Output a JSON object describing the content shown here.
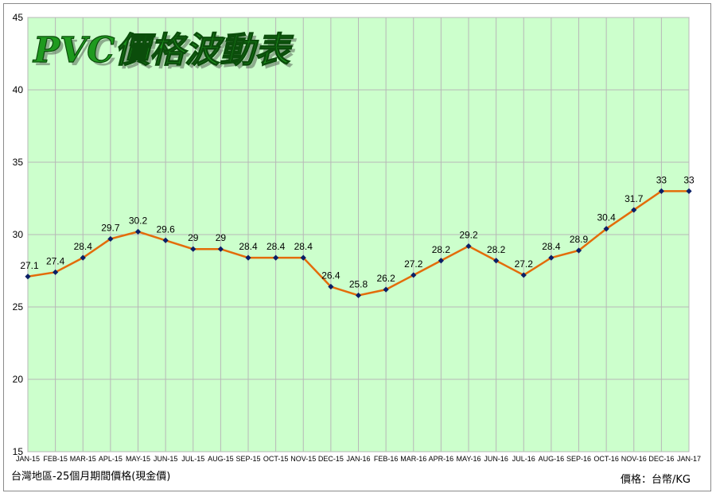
{
  "chart_data": {
    "type": "line",
    "title": "PVC價格波動表",
    "categories": [
      "JAN-15",
      "FEB-15",
      "MAR-15",
      "APL-15",
      "MAY-15",
      "JUN-15",
      "JUL-15",
      "AUG-15",
      "SEP-15",
      "OCT-15",
      "NOV-15",
      "DEC-15",
      "JAN-16",
      "FEB-16",
      "MAR-16",
      "APR-16",
      "MAY-16",
      "JUN-16",
      "JUL-16",
      "AUG-16",
      "SEP-16",
      "OCT-16",
      "NOV-16",
      "DEC-16",
      "JAN-17"
    ],
    "series": [
      {
        "values": [
          27.1,
          27.4,
          28.4,
          29.7,
          30.2,
          29.6,
          29,
          29,
          28.4,
          28.4,
          28.4,
          26.4,
          25.8,
          26.2,
          27.2,
          28.2,
          29.2,
          28.2,
          27.2,
          28.4,
          28.9,
          30.4,
          31.7,
          33,
          33
        ],
        "line_color": "#e36c0a",
        "marker_color": "#0b1f66"
      }
    ],
    "ylim": [
      15,
      45
    ],
    "yticks": [
      15,
      20,
      25,
      30,
      35,
      40,
      45
    ],
    "grid": true,
    "plot_background": "#ccffcc",
    "grid_color": "#b7b7b7"
  },
  "footnote": "台灣地區-25個月期間價格(現金價)",
  "unit_label": "價格：台幣/KG"
}
